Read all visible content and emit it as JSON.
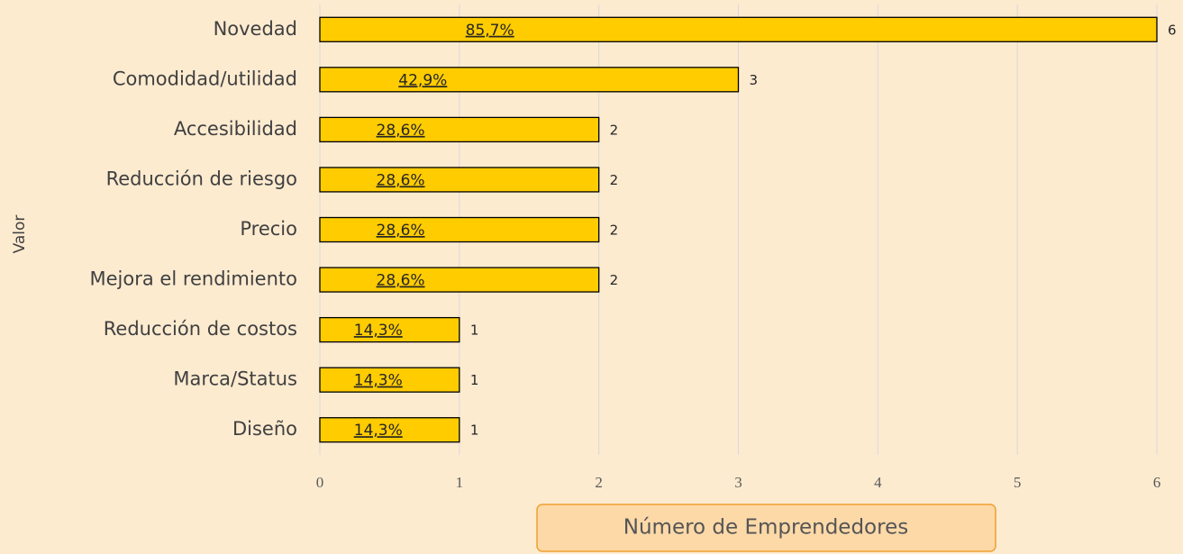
{
  "chart_data": {
    "type": "bar",
    "orientation": "horizontal",
    "categories": [
      "Novedad",
      "Comodidad/utilidad",
      "Accesibilidad",
      "Reducción de riesgo",
      "Precio",
      "Mejora el rendimiento",
      "Reducción de costos",
      "Marca/Status",
      "Diseño"
    ],
    "values": [
      6,
      3,
      2,
      2,
      2,
      2,
      1,
      1,
      1
    ],
    "shares": [
      85.7,
      42.9,
      28.6,
      28.6,
      28.6,
      28.6,
      14.3,
      14.3,
      14.3
    ],
    "share_labels": [
      "85,7%",
      "42,9%",
      "28,6%",
      "28,6%",
      "28,6%",
      "28,6%",
      "14,3%",
      "14,3%",
      "14,3%"
    ],
    "color": "#ffcc00",
    "xlim": [
      0,
      6
    ],
    "xticks": [
      0,
      1,
      2,
      3,
      4,
      5,
      6
    ],
    "grid": true,
    "xlabel": "Número de Emprendedores",
    "ylabel": "Valor"
  }
}
